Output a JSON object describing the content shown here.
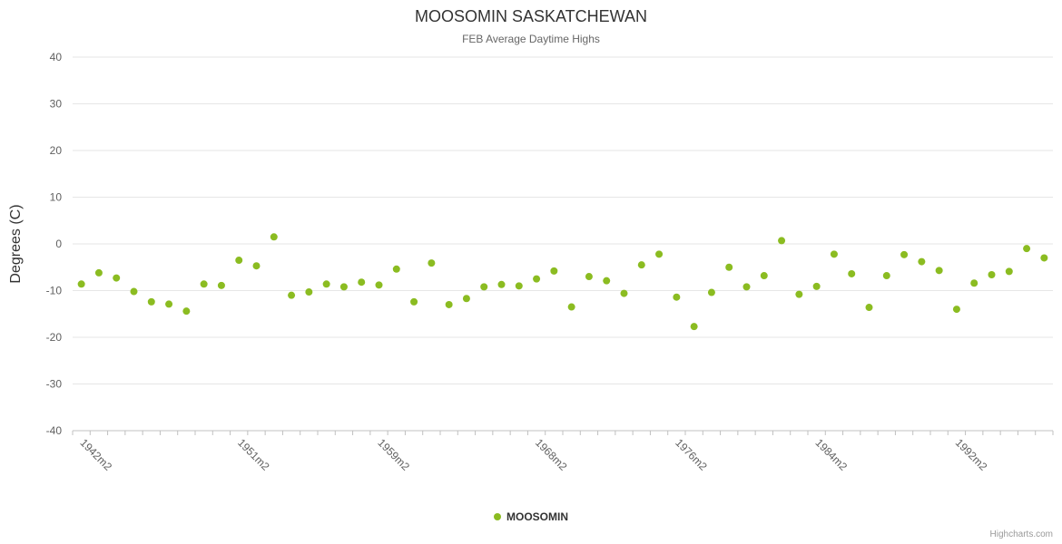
{
  "header": {
    "title": "MOOSOMIN SASKATCHEWAN",
    "subtitle": "FEB Average Daytime Highs"
  },
  "legend": {
    "items": [
      {
        "label": "MOOSOMIN",
        "color": "#8bbc21"
      }
    ]
  },
  "credits": {
    "label": "Highcharts.com"
  },
  "colors": {
    "point": "#8bbc21",
    "grid": "#e6e6e6",
    "axis_line": "#c0c0c0",
    "axis_text": "#606060",
    "title_text": "#333333",
    "subtitle_text": "#666666"
  },
  "chart_data": {
    "type": "scatter",
    "title": "MOOSOMIN SASKATCHEWAN",
    "subtitle": "FEB Average Daytime Highs",
    "xlabel": "",
    "ylabel": "Degrees (C)",
    "ylim": [
      -40,
      40
    ],
    "y_ticks": [
      -40,
      -30,
      -20,
      -10,
      0,
      10,
      20,
      30,
      40
    ],
    "grid": true,
    "legend_position": "bottom",
    "categories": [
      "1942m2",
      "1943m2",
      "1944m2",
      "1945m2",
      "1946m2",
      "1947m2",
      "1948m2",
      "1949m2",
      "1950m2",
      "1951m2",
      "1952m2",
      "1953m2",
      "1954m2",
      "1955m2",
      "1956m2",
      "1957m2",
      "1958m2",
      "1959m2",
      "1960m2",
      "1961m2",
      "1962m2",
      "1963m2",
      "1964m2",
      "1965m2",
      "1966m2",
      "1967m2",
      "1968m2",
      "1969m2",
      "1970m2",
      "1971m2",
      "1972m2",
      "1973m2",
      "1974m2",
      "1975m2",
      "1976m2",
      "1977m2",
      "1978m2",
      "1979m2",
      "1980m2",
      "1981m2",
      "1982m2",
      "1983m2",
      "1984m2",
      "1985m2",
      "1986m2",
      "1987m2",
      "1988m2",
      "1989m2",
      "1990m2",
      "1991m2",
      "1992m2",
      "1993m2",
      "1994m2",
      "1995m2",
      "1996m2",
      "1997m2"
    ],
    "x_tick_labels": [
      "1942m2",
      "1951m2",
      "1959m2",
      "1968m2",
      "1976m2",
      "1984m2",
      "1992m2"
    ],
    "x_tick_indices": [
      0,
      9,
      17,
      26,
      34,
      42,
      50
    ],
    "series": [
      {
        "name": "MOOSOMIN",
        "color": "#8bbc21",
        "values": [
          -8.6,
          -6.2,
          -7.3,
          -10.2,
          -12.4,
          -12.9,
          -14.4,
          -8.6,
          -8.9,
          -3.5,
          -4.7,
          1.5,
          -11.0,
          -10.3,
          -8.6,
          -9.2,
          -8.2,
          -8.8,
          -5.4,
          -12.4,
          -4.1,
          -13.0,
          -11.7,
          -9.2,
          -8.7,
          -9.0,
          -7.5,
          -5.8,
          -13.5,
          -7.0,
          -7.9,
          -10.6,
          -4.5,
          -2.2,
          -11.4,
          -17.7,
          -10.4,
          -5.0,
          -9.2,
          -6.8,
          0.7,
          -10.8,
          -9.1,
          -2.2,
          -6.4,
          -13.6,
          -6.8,
          -2.3,
          -3.8,
          -5.7,
          -14.0,
          -8.4,
          -6.6,
          -5.9,
          -1.0,
          -3.0
        ]
      }
    ]
  }
}
